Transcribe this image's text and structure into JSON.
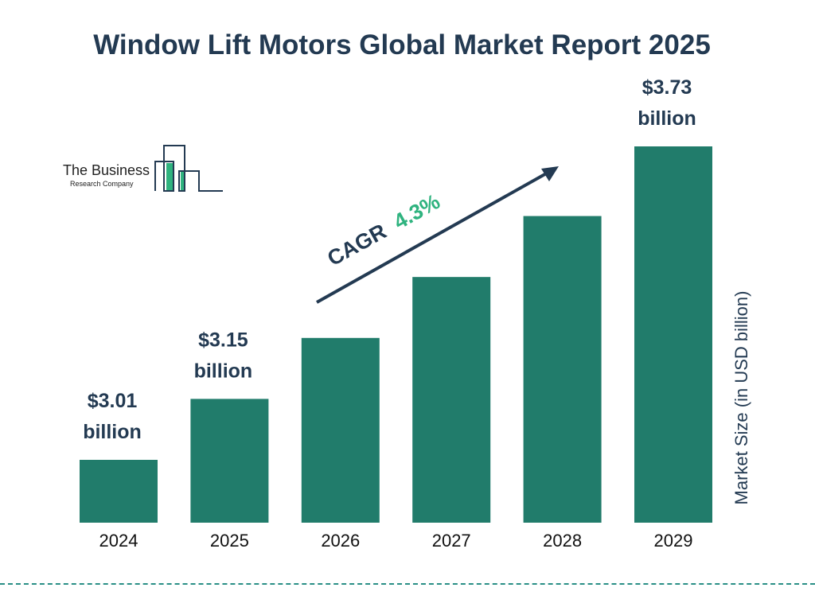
{
  "title": "Window Lift Motors Global Market Report 2025",
  "logo": {
    "line1": "The Business",
    "line2": "Research Company"
  },
  "cagr": {
    "label": "CAGR",
    "value": "4.3%"
  },
  "colors": {
    "bar": "#217c6b",
    "title": "#233a52",
    "cagr_value": "#2fb37f",
    "divider": "#2a8f86"
  },
  "chart_data": {
    "type": "bar",
    "title": "Window Lift Motors Global Market Report 2025",
    "categories": [
      "2024",
      "2025",
      "2026",
      "2027",
      "2028",
      "2029"
    ],
    "values": [
      3.01,
      3.15,
      3.29,
      3.43,
      3.57,
      3.73
    ],
    "data_labels": [
      "$3.01 billion",
      "$3.15 billion",
      "",
      "",
      "",
      "$3.73 billion"
    ],
    "xlabel": "",
    "ylabel": "Market Size (in USD billion)",
    "ylim": [
      2.87,
      3.73
    ],
    "grid": false,
    "legend": "none"
  }
}
